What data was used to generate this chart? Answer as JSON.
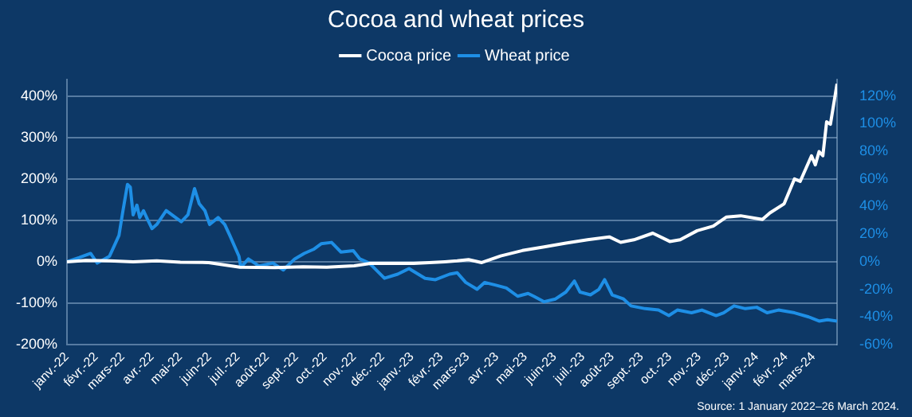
{
  "chart_data": {
    "type": "line",
    "title": "Cocoa and wheat prices",
    "annotations": [
      "Source: 1 January 2022–26 March 2024."
    ],
    "legend": "top",
    "grid": "y",
    "marker": "none",
    "line_style": "solid",
    "xlim": [
      "2022-01-01",
      "2024-03-26"
    ],
    "xticks": [
      {
        "value": "2022-01-01",
        "label": "janv.-22"
      },
      {
        "value": "2022-02-01",
        "label": "févr.-22"
      },
      {
        "value": "2022-03-01",
        "label": "mars-22"
      },
      {
        "value": "2022-04-01",
        "label": "avr.-22"
      },
      {
        "value": "2022-05-01",
        "label": "mai-22"
      },
      {
        "value": "2022-06-01",
        "label": "juin-22"
      },
      {
        "value": "2022-07-01",
        "label": "juil.-22"
      },
      {
        "value": "2022-08-01",
        "label": "août-22"
      },
      {
        "value": "2022-09-01",
        "label": "sept.-22"
      },
      {
        "value": "2022-10-01",
        "label": "oct.-22"
      },
      {
        "value": "2022-11-01",
        "label": "nov.-22"
      },
      {
        "value": "2022-12-01",
        "label": "déc.-22"
      },
      {
        "value": "2023-01-01",
        "label": "janv.-23"
      },
      {
        "value": "2023-02-01",
        "label": "févr.-23"
      },
      {
        "value": "2023-03-01",
        "label": "mars-23"
      },
      {
        "value": "2023-04-01",
        "label": "avr.-23"
      },
      {
        "value": "2023-05-01",
        "label": "mai-23"
      },
      {
        "value": "2023-06-01",
        "label": "juin-23"
      },
      {
        "value": "2023-07-01",
        "label": "juil.-23"
      },
      {
        "value": "2023-08-01",
        "label": "août-23"
      },
      {
        "value": "2023-09-01",
        "label": "sept.-23"
      },
      {
        "value": "2023-10-01",
        "label": "oct.-23"
      },
      {
        "value": "2023-11-01",
        "label": "nov.-23"
      },
      {
        "value": "2023-12-01",
        "label": "déc.-23"
      },
      {
        "value": "2024-01-01",
        "label": "janv.-24"
      },
      {
        "value": "2024-02-01",
        "label": "févr.-24"
      },
      {
        "value": "2024-03-01",
        "label": "mars-24"
      }
    ],
    "ylim": [
      -200,
      440
    ],
    "yticks": [
      {
        "value": -200,
        "label": "-200%"
      },
      {
        "value": -100,
        "label": "-100%"
      },
      {
        "value": 0,
        "label": "0%"
      },
      {
        "value": 100,
        "label": "100%"
      },
      {
        "value": 200,
        "label": "200%"
      },
      {
        "value": 300,
        "label": "300%"
      },
      {
        "value": 400,
        "label": "400%"
      }
    ],
    "y2lim": [
      -60,
      132
    ],
    "y2ticks": [
      {
        "value": -60,
        "label": "-60%"
      },
      {
        "value": -40,
        "label": "-40%"
      },
      {
        "value": -20,
        "label": "-20%"
      },
      {
        "value": 0,
        "label": "0%"
      },
      {
        "value": 20,
        "label": "20%"
      },
      {
        "value": 40,
        "label": "40%"
      },
      {
        "value": 60,
        "label": "60%"
      },
      {
        "value": 80,
        "label": "80%"
      },
      {
        "value": 100,
        "label": "100%"
      },
      {
        "value": 120,
        "label": "120%"
      }
    ],
    "series": [
      {
        "name": "Cocoa price",
        "color": "#ffffff",
        "x": [
          "2022-01-01",
          "2022-01-21",
          "2022-02-15",
          "2022-03-12",
          "2022-04-06",
          "2022-05-01",
          "2022-05-31",
          "2022-07-03",
          "2022-08-09",
          "2022-09-08",
          "2022-10-03",
          "2022-11-01",
          "2022-11-18",
          "2023-01-03",
          "2023-02-05",
          "2023-02-18",
          "2023-03-02",
          "2023-03-16",
          "2023-04-05",
          "2023-04-28",
          "2023-05-21",
          "2023-06-13",
          "2023-07-06",
          "2023-07-29",
          "2023-08-10",
          "2023-08-24",
          "2023-09-13",
          "2023-10-01",
          "2023-10-12",
          "2023-10-30",
          "2023-11-16",
          "2023-11-30",
          "2023-12-15",
          "2024-01-07",
          "2024-01-15",
          "2024-01-30",
          "2024-02-10",
          "2024-02-16",
          "2024-02-28",
          "2024-03-03",
          "2024-03-07",
          "2024-03-11",
          "2024-03-15",
          "2024-03-19",
          "2024-03-26"
        ],
        "values": [
          0,
          3,
          2,
          0,
          2,
          -1,
          -2,
          -13,
          -14,
          -12,
          -13,
          -10,
          -4,
          -4,
          0,
          2,
          5,
          -2,
          14,
          27,
          36,
          45,
          53,
          60,
          47,
          53,
          69,
          49,
          53,
          75,
          86,
          108,
          111,
          102,
          118,
          140,
          200,
          194,
          256,
          234,
          266,
          256,
          338,
          332,
          430
        ]
      },
      {
        "name": "Wheat price",
        "color": "#1e8fe6",
        "axis": "y2",
        "x": [
          "2022-01-01",
          "2022-01-14",
          "2022-01-26",
          "2022-02-02",
          "2022-02-15",
          "2022-02-21",
          "2022-02-25",
          "2022-03-01",
          "2022-03-06",
          "2022-03-09",
          "2022-03-12",
          "2022-03-16",
          "2022-03-19",
          "2022-03-23",
          "2022-03-27",
          "2022-04-01",
          "2022-04-06",
          "2022-04-16",
          "2022-04-22",
          "2022-05-02",
          "2022-05-09",
          "2022-05-16",
          "2022-05-21",
          "2022-05-27",
          "2022-06-01",
          "2022-06-10",
          "2022-06-17",
          "2022-06-23",
          "2022-07-02",
          "2022-07-04",
          "2022-07-12",
          "2022-07-23",
          "2022-08-07",
          "2022-08-18",
          "2022-08-30",
          "2022-09-09",
          "2022-09-19",
          "2022-09-27",
          "2022-10-08",
          "2022-10-18",
          "2022-10-31",
          "2022-11-07",
          "2022-11-17",
          "2022-12-03",
          "2022-12-17",
          "2022-12-29",
          "2023-01-15",
          "2023-01-26",
          "2023-02-10",
          "2023-02-18",
          "2023-02-27",
          "2023-03-11",
          "2023-03-19",
          "2023-03-31",
          "2023-04-11",
          "2023-04-23",
          "2023-05-04",
          "2023-05-10",
          "2023-05-21",
          "2023-06-02",
          "2023-06-13",
          "2023-06-22",
          "2023-06-28",
          "2023-07-09",
          "2023-07-18",
          "2023-07-24",
          "2023-08-01",
          "2023-08-13",
          "2023-08-21",
          "2023-09-05",
          "2023-09-19",
          "2023-09-30",
          "2023-10-09",
          "2023-10-24",
          "2023-11-04",
          "2023-11-19",
          "2023-11-27",
          "2023-12-08",
          "2023-12-20",
          "2024-01-01",
          "2024-01-12",
          "2024-01-24",
          "2024-02-10",
          "2024-02-25",
          "2024-03-07",
          "2024-03-16",
          "2024-03-26"
        ],
        "values": [
          0,
          3,
          6,
          -1,
          4,
          13,
          19,
          36,
          56,
          54,
          34,
          41,
          32,
          37,
          31,
          24,
          27,
          37,
          34,
          29,
          34,
          53,
          42,
          37,
          27,
          32,
          27,
          18,
          4,
          -4,
          2,
          -3,
          -1,
          -6,
          2,
          6,
          9,
          13,
          14,
          7,
          8,
          2,
          -1,
          -12,
          -9,
          -5,
          -12,
          -13,
          -9,
          -8,
          -15,
          -20,
          -15,
          -17,
          -19,
          -25,
          -23,
          -25,
          -29,
          -27,
          -22,
          -14,
          -22,
          -24,
          -20,
          -13,
          -24,
          -27,
          -32,
          -34,
          -35,
          -39,
          -35,
          -37,
          -35,
          -39,
          -37,
          -32,
          -34,
          -33,
          -37,
          -35,
          -37,
          -40,
          -43,
          -42,
          -43
        ]
      }
    ]
  }
}
